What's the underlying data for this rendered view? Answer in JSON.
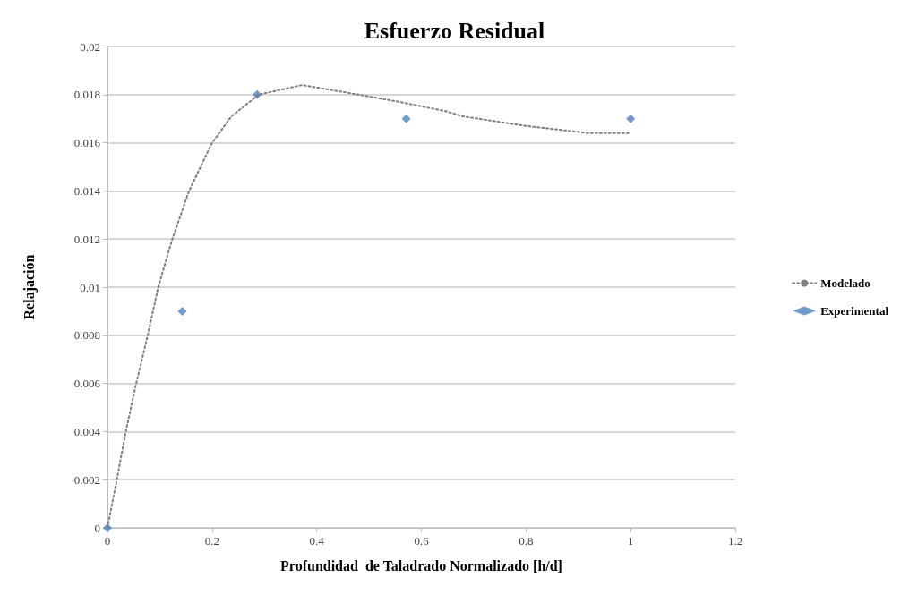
{
  "chart_data": {
    "type": "scatter",
    "title": "Esfuerzo Residual",
    "xlabel": "Profundidad  de Taladrado Normalizado [h/d]",
    "ylabel": "Relajación",
    "xlim": [
      0,
      1.2
    ],
    "xticks": [
      0,
      0.2,
      0.4,
      0.6,
      0.8,
      1,
      1.2
    ],
    "ylim": [
      0,
      0.02
    ],
    "yticks": [
      0,
      0.002,
      0.004,
      0.006,
      0.008,
      0.01,
      0.012,
      0.014,
      0.016,
      0.018,
      0.02
    ],
    "grid": "y",
    "legend": "right",
    "series": [
      {
        "name": "Modelado",
        "type": "line",
        "line_style": "dotted",
        "marker": "none",
        "color": "#7f7f7f",
        "x": [
          0,
          0.018,
          0.035,
          0.055,
          0.077,
          0.097,
          0.124,
          0.156,
          0.2,
          0.237,
          0.289,
          0.372,
          0.48,
          0.558,
          0.649,
          0.679,
          0.8,
          0.921,
          1
        ],
        "values": [
          0,
          0.002,
          0.004,
          0.006,
          0.008,
          0.01,
          0.012,
          0.014,
          0.016,
          0.0171,
          0.018,
          0.0184,
          0.018,
          0.0177,
          0.0173,
          0.0171,
          0.0167,
          0.0164,
          0.0164
        ]
      },
      {
        "name": "Experimental",
        "marker": "diamond",
        "color": "#4f81bd",
        "x": [
          0,
          0.143,
          0.286,
          0.571,
          1
        ],
        "values": [
          0,
          0.009,
          0.018,
          0.017,
          0.017
        ]
      }
    ]
  }
}
